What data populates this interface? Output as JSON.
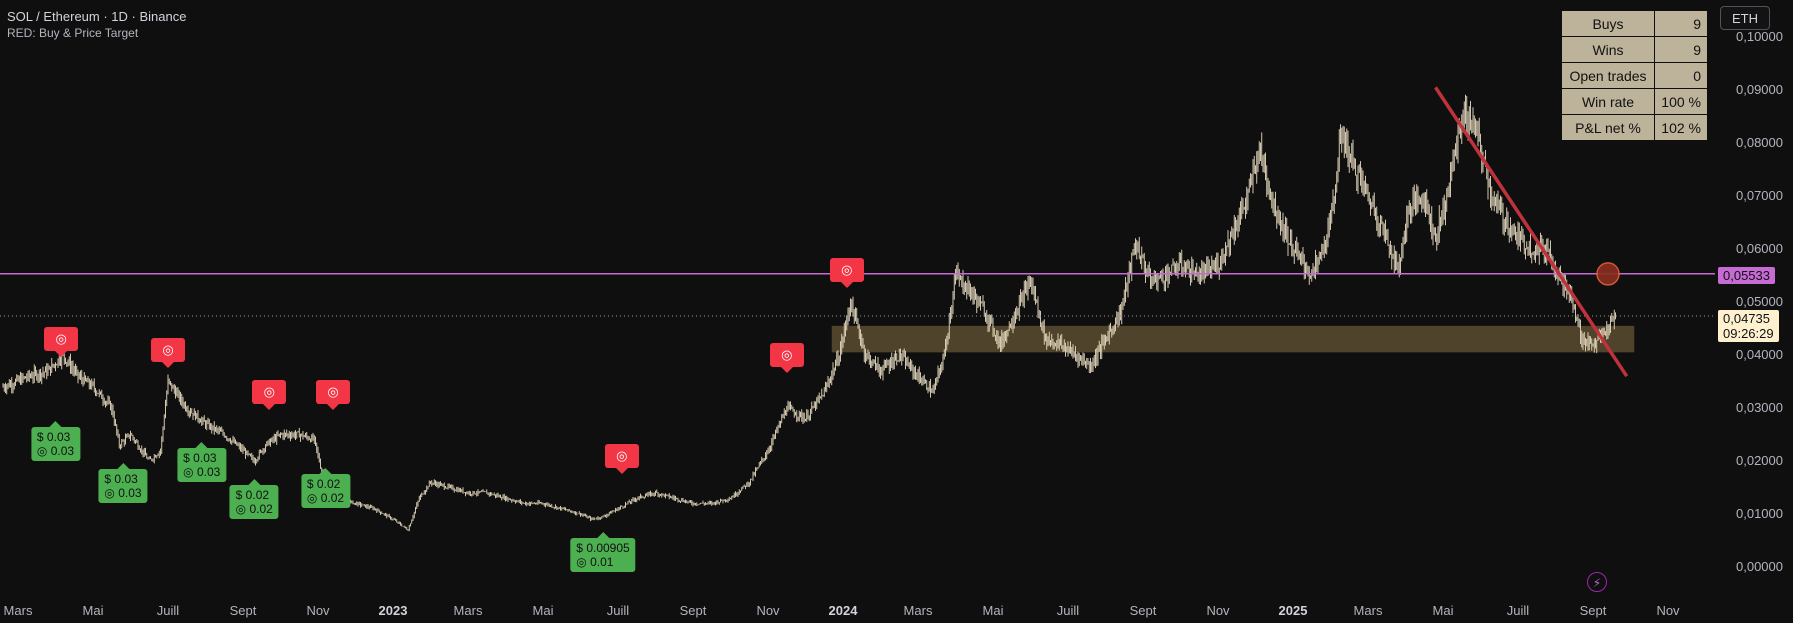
{
  "header": {
    "title": "SOL / Ethereum · 1D · Binance",
    "subtitle": "RED: Buy & Price Target"
  },
  "currency_button": "ETH",
  "stats": [
    {
      "label": "Buys",
      "value": "9"
    },
    {
      "label": "Wins",
      "value": "9"
    },
    {
      "label": "Open trades",
      "value": "0"
    },
    {
      "label": "Win rate",
      "value": "100 %"
    },
    {
      "label": "P&L net %",
      "value": "102 %"
    }
  ],
  "price_tags": {
    "horizontal_line": "0,05533",
    "last_price": "0,04735",
    "countdown": "09:26:29"
  },
  "colors": {
    "background": "#0f0f0f",
    "candle": "#e8dcc0",
    "hline": "#c56bd3",
    "trendline": "#c0323b",
    "zone": "#5c4c30",
    "target": "#f23645",
    "buy": "#4caf50"
  },
  "chart_data": {
    "type": "candlestick",
    "title": "SOL / Ethereum · 1D · Binance",
    "y_axis": {
      "min": 0,
      "max": 0.1,
      "labels": [
        "0,10000",
        "0,09000",
        "0,08000",
        "0,07000",
        "0,06000",
        "0,05000",
        "0,04000",
        "0,03000",
        "0,02000",
        "0,01000",
        "0,00000"
      ]
    },
    "x_axis": {
      "labels": [
        {
          "t": "Mars",
          "x": 0.0
        },
        {
          "t": "Mai",
          "x": 2.0
        },
        {
          "t": "Juill",
          "x": 4.0
        },
        {
          "t": "Sept",
          "x": 6.0
        },
        {
          "t": "Nov",
          "x": 8.0
        },
        {
          "t": "2023",
          "x": 10.0,
          "bold": true
        },
        {
          "t": "Mars",
          "x": 12.0
        },
        {
          "t": "Mai",
          "x": 14.0
        },
        {
          "t": "Juill",
          "x": 16.0
        },
        {
          "t": "Sept",
          "x": 18.0
        },
        {
          "t": "Nov",
          "x": 20.0
        },
        {
          "t": "2024",
          "x": 22.0,
          "bold": true
        },
        {
          "t": "Mars",
          "x": 24.0
        },
        {
          "t": "Mai",
          "x": 26.0
        },
        {
          "t": "Juill",
          "x": 28.0
        },
        {
          "t": "Sept",
          "x": 30.0
        },
        {
          "t": "Nov",
          "x": 32.0
        },
        {
          "t": "2025",
          "x": 34.0,
          "bold": true
        },
        {
          "t": "Mars",
          "x": 36.0
        },
        {
          "t": "Mai",
          "x": 38.0
        },
        {
          "t": "Juill",
          "x": 40.0
        },
        {
          "t": "Sept",
          "x": 42.0
        },
        {
          "t": "Nov",
          "x": 44.0
        }
      ]
    },
    "price_path": [
      [
        -0.4,
        0.034
      ],
      [
        0.3,
        0.036
      ],
      [
        0.8,
        0.037
      ],
      [
        1.2,
        0.04
      ],
      [
        1.6,
        0.036
      ],
      [
        2.0,
        0.034
      ],
      [
        2.5,
        0.03
      ],
      [
        2.7,
        0.023
      ],
      [
        3.0,
        0.025
      ],
      [
        3.5,
        0.02
      ],
      [
        3.8,
        0.022
      ],
      [
        4.0,
        0.035
      ],
      [
        4.5,
        0.03
      ],
      [
        5.0,
        0.027
      ],
      [
        5.5,
        0.025
      ],
      [
        6.0,
        0.022
      ],
      [
        6.3,
        0.02
      ],
      [
        6.6,
        0.023
      ],
      [
        7.0,
        0.025
      ],
      [
        7.5,
        0.025
      ],
      [
        7.9,
        0.024
      ],
      [
        8.1,
        0.018
      ],
      [
        8.5,
        0.013
      ],
      [
        9.0,
        0.012
      ],
      [
        9.5,
        0.011
      ],
      [
        10.0,
        0.009
      ],
      [
        10.4,
        0.007
      ],
      [
        10.7,
        0.013
      ],
      [
        11.0,
        0.016
      ],
      [
        11.5,
        0.015
      ],
      [
        12.0,
        0.014
      ],
      [
        12.5,
        0.014
      ],
      [
        13.0,
        0.013
      ],
      [
        13.5,
        0.012
      ],
      [
        14.0,
        0.012
      ],
      [
        14.5,
        0.011
      ],
      [
        15.0,
        0.01
      ],
      [
        15.3,
        0.009
      ],
      [
        15.6,
        0.0095
      ],
      [
        16.0,
        0.011
      ],
      [
        16.5,
        0.013
      ],
      [
        17.0,
        0.014
      ],
      [
        17.5,
        0.013
      ],
      [
        18.0,
        0.012
      ],
      [
        18.5,
        0.012
      ],
      [
        19.0,
        0.013
      ],
      [
        19.5,
        0.016
      ],
      [
        20.0,
        0.022
      ],
      [
        20.5,
        0.03
      ],
      [
        21.0,
        0.028
      ],
      [
        21.5,
        0.033
      ],
      [
        21.9,
        0.04
      ],
      [
        22.2,
        0.05
      ],
      [
        22.6,
        0.04
      ],
      [
        23.0,
        0.037
      ],
      [
        23.5,
        0.04
      ],
      [
        24.0,
        0.036
      ],
      [
        24.4,
        0.033
      ],
      [
        24.7,
        0.04
      ],
      [
        25.0,
        0.055
      ],
      [
        25.4,
        0.052
      ],
      [
        25.8,
        0.048
      ],
      [
        26.2,
        0.042
      ],
      [
        26.6,
        0.048
      ],
      [
        27.0,
        0.054
      ],
      [
        27.4,
        0.043
      ],
      [
        27.8,
        0.042
      ],
      [
        28.2,
        0.04
      ],
      [
        28.6,
        0.038
      ],
      [
        29.0,
        0.043
      ],
      [
        29.4,
        0.048
      ],
      [
        29.8,
        0.061
      ],
      [
        30.2,
        0.054
      ],
      [
        30.6,
        0.055
      ],
      [
        31.0,
        0.057
      ],
      [
        31.5,
        0.055
      ],
      [
        32.0,
        0.057
      ],
      [
        32.5,
        0.065
      ],
      [
        32.8,
        0.07
      ],
      [
        33.1,
        0.079
      ],
      [
        33.5,
        0.068
      ],
      [
        34.0,
        0.06
      ],
      [
        34.5,
        0.055
      ],
      [
        34.8,
        0.06
      ],
      [
        35.0,
        0.065
      ],
      [
        35.3,
        0.082
      ],
      [
        35.6,
        0.076
      ],
      [
        36.0,
        0.07
      ],
      [
        36.5,
        0.062
      ],
      [
        36.8,
        0.056
      ],
      [
        37.1,
        0.068
      ],
      [
        37.5,
        0.07
      ],
      [
        37.8,
        0.062
      ],
      [
        38.1,
        0.07
      ],
      [
        38.5,
        0.085
      ],
      [
        38.8,
        0.084
      ],
      [
        39.0,
        0.079
      ],
      [
        39.3,
        0.07
      ],
      [
        39.6,
        0.066
      ],
      [
        40.0,
        0.062
      ],
      [
        40.4,
        0.06
      ],
      [
        40.8,
        0.06
      ],
      [
        41.1,
        0.055
      ],
      [
        41.4,
        0.051
      ],
      [
        41.7,
        0.043
      ],
      [
        42.0,
        0.042
      ],
      [
        42.3,
        0.044
      ],
      [
        42.6,
        0.047
      ]
    ],
    "horizontal_line": 0.05533,
    "last_price": 0.04735,
    "zone": {
      "x0": 21.7,
      "x1": 43.1,
      "y0": 0.0455,
      "y1": 0.0405
    },
    "trendline": {
      "x0": 37.8,
      "y0": 0.0905,
      "x1": 42.9,
      "y1": 0.036
    },
    "marker_circle": {
      "x": 42.4,
      "y": 0.0553
    },
    "targets": [
      {
        "x": 1.15,
        "y": 0.039
      },
      {
        "x": 4.0,
        "y": 0.037
      },
      {
        "x": 6.7,
        "y": 0.029
      },
      {
        "x": 8.4,
        "y": 0.029
      },
      {
        "x": 16.1,
        "y": 0.017
      },
      {
        "x": 20.5,
        "y": 0.036
      },
      {
        "x": 22.1,
        "y": 0.052
      }
    ],
    "buys": [
      {
        "x": 1.0,
        "y": 0.028,
        "price": "0.03",
        "target": "0.03"
      },
      {
        "x": 2.8,
        "y": 0.02,
        "price": "0.03",
        "target": "0.03"
      },
      {
        "x": 4.9,
        "y": 0.024,
        "price": "0.03",
        "target": "0.03"
      },
      {
        "x": 6.3,
        "y": 0.017,
        "price": "0.02",
        "target": "0.02"
      },
      {
        "x": 8.2,
        "y": 0.019,
        "price": "0.02",
        "target": "0.02"
      },
      {
        "x": 15.6,
        "y": 0.007,
        "price": "0.00905",
        "target": "0.01"
      }
    ]
  }
}
